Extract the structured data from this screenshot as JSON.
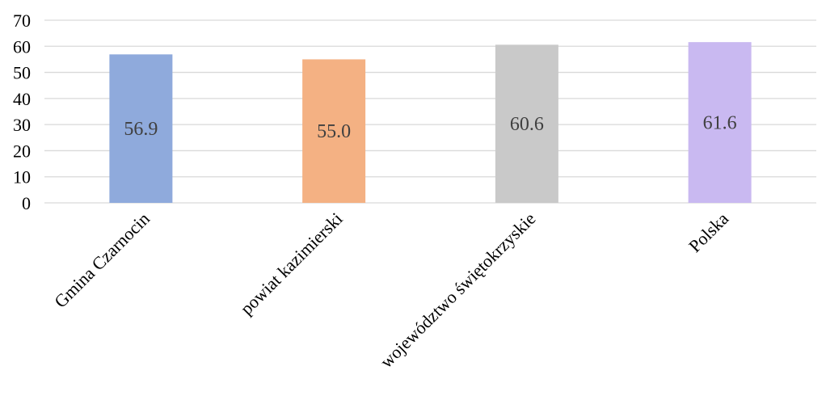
{
  "chart_data": {
    "type": "bar",
    "categories": [
      "Gmina Czarnocin",
      "powiat kazimierski",
      "województwo świętokrzyskie",
      "Polska"
    ],
    "values": [
      56.9,
      55.0,
      60.6,
      61.6
    ],
    "data_labels": [
      "56.9",
      "55.0",
      "60.6",
      "61.6"
    ],
    "colors": [
      "#8faadc",
      "#f4b183",
      "#c9c9c9",
      "#c9b9f1"
    ],
    "title": "",
    "xlabel": "",
    "ylabel": "",
    "ylim": [
      0,
      70
    ],
    "yticks": [
      "0",
      "10",
      "20",
      "30",
      "40",
      "50",
      "60",
      "70"
    ],
    "grid": true,
    "legend": "none"
  }
}
